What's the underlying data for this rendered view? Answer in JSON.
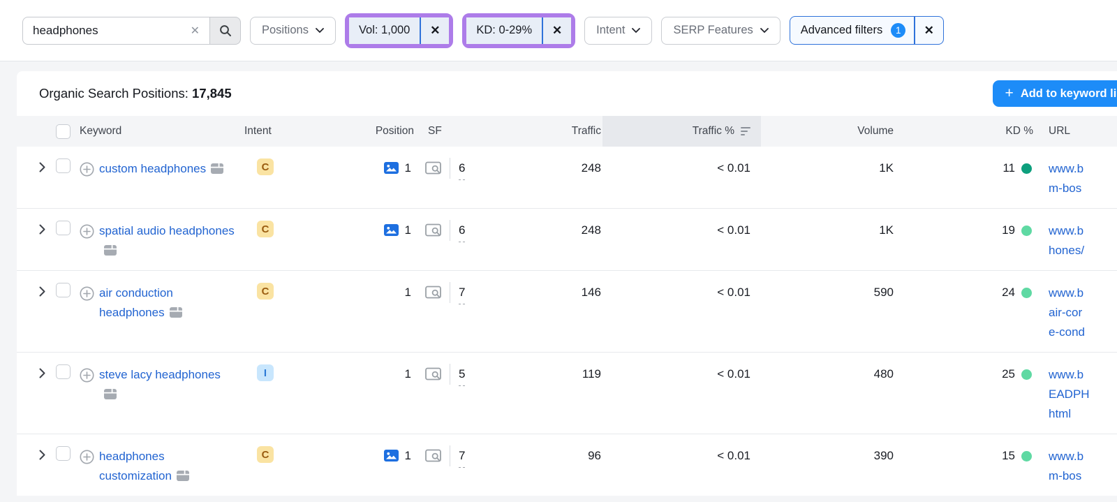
{
  "filter_bar": {
    "search": {
      "value": "headphones"
    },
    "positions_dropdown": "Positions",
    "vol_chip": "Vol: 1,000",
    "kd_chip": "KD: 0-29%",
    "intent_dropdown": "Intent",
    "serp_features_dropdown": "SERP Features",
    "advanced_filters": {
      "label": "Advanced filters",
      "count": "1"
    }
  },
  "header": {
    "title_label": "Organic Search Positions:",
    "title_count": "17,845",
    "add_button": "Add to keyword list",
    "add_plus": "+"
  },
  "table": {
    "columns": {
      "keyword": "Keyword",
      "intent": "Intent",
      "position": "Position",
      "sf": "SF",
      "traffic": "Traffic",
      "traffic_pct": "Traffic %",
      "volume": "Volume",
      "kd": "KD %",
      "url": "URL"
    },
    "sorted_column": "traffic_pct",
    "intent_styles": {
      "C": {
        "bg": "#fae3a2",
        "fg": "#9a5c10"
      },
      "I": {
        "bg": "#c8e6fd",
        "fg": "#2b7ad6"
      }
    },
    "rows": [
      {
        "keyword": "custom headphones",
        "intent": "C",
        "image_pack": true,
        "position": "1",
        "sf": "6",
        "traffic": "248",
        "traffic_pct": "< 0.01",
        "volume": "1K",
        "kd": "11",
        "kd_dot": "#0d9f7d",
        "url_lines": [
          "www.b",
          "m-bos"
        ]
      },
      {
        "keyword": "spatial audio headphones",
        "intent": "C",
        "image_pack": true,
        "position": "1",
        "sf": "6",
        "traffic": "248",
        "traffic_pct": "< 0.01",
        "volume": "1K",
        "kd": "19",
        "kd_dot": "#5fd9a3",
        "url_lines": [
          "www.b",
          "hones/"
        ]
      },
      {
        "keyword": "air conduction headphones",
        "intent": "C",
        "image_pack": false,
        "position": "1",
        "sf": "7",
        "traffic": "146",
        "traffic_pct": "< 0.01",
        "volume": "590",
        "kd": "24",
        "kd_dot": "#5fd9a3",
        "url_lines": [
          "www.b",
          "air-cor",
          "e-cond"
        ]
      },
      {
        "keyword": "steve lacy headphones",
        "intent": "I",
        "image_pack": false,
        "position": "1",
        "sf": "5",
        "traffic": "119",
        "traffic_pct": "< 0.01",
        "volume": "480",
        "kd": "25",
        "kd_dot": "#5fd9a3",
        "url_lines": [
          "www.b",
          "EADPH",
          "html"
        ]
      },
      {
        "keyword": "headphones customization",
        "intent": "C",
        "image_pack": true,
        "position": "1",
        "sf": "7",
        "traffic": "96",
        "traffic_pct": "< 0.01",
        "volume": "390",
        "kd": "15",
        "kd_dot": "#5fd9a3",
        "url_lines": [
          "www.b",
          "m-bos"
        ]
      }
    ]
  },
  "colors": {
    "accent_blue": "#1d8cf8",
    "link_blue": "#2264d1",
    "highlight_purple": "#ad7ce9",
    "kd_very_easy": "#0d9f7d",
    "kd_easy": "#5fd9a3",
    "page_bg": "#f4f5f7"
  }
}
